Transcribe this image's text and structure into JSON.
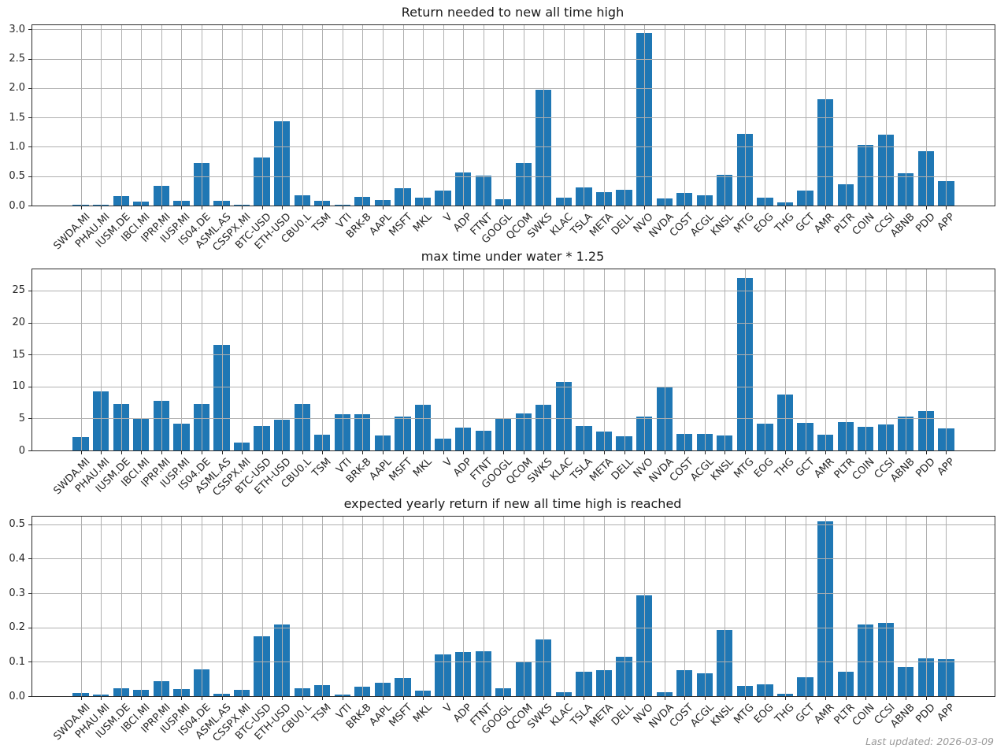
{
  "figure": {
    "background_color": "#ffffff",
    "bar_color": "#1f77b4",
    "grid_color": "#b0b0b0"
  },
  "footer": {
    "last_updated": "Last updated: 2026-03-09"
  },
  "chart_data": [
    {
      "type": "bar",
      "title": "Return needed to new all time high",
      "xlabel": "",
      "ylabel": "",
      "grid": true,
      "legend": false,
      "ylim": [
        0,
        3.07
      ],
      "ytick_values": [
        0,
        0.5,
        1.0,
        1.5,
        2.0,
        2.5,
        3.0
      ],
      "ytick_labels": [
        "0.0",
        "0.5",
        "1.0",
        "1.5",
        "2.0",
        "2.5",
        "3.0"
      ],
      "categories": [
        "SWDA.MI",
        "PHAU.MI",
        "IUSM.DE",
        "IBCI.MI",
        "IPRP.MI",
        "IUSP.MI",
        "IS04.DE",
        "ASML.AS",
        "CSSPX.MI",
        "BTC-USD",
        "ETH-USD",
        "CBU0.L",
        "TSM",
        "VTI",
        "BRK-B",
        "AAPL",
        "MSFT",
        "MKL",
        "V",
        "ADP",
        "FTNT",
        "GOOGL",
        "QCOM",
        "SWKS",
        "KLAC",
        "TSLA",
        "META",
        "DELL",
        "NVO",
        "NVDA",
        "COST",
        "ACGL",
        "KNSL",
        "MTG",
        "EOG",
        "THG",
        "GCT",
        "AMR",
        "PLTR",
        "COIN",
        "CCSI",
        "ABNB",
        "PDD",
        "APP"
      ],
      "values": [
        0.01,
        0.02,
        0.16,
        0.07,
        0.34,
        0.08,
        0.72,
        0.08,
        0.02,
        0.82,
        1.44,
        0.17,
        0.08,
        0.01,
        0.15,
        0.1,
        0.3,
        0.13,
        0.25,
        0.57,
        0.51,
        0.11,
        0.73,
        1.97,
        0.14,
        0.31,
        0.23,
        0.27,
        2.94,
        0.12,
        0.21,
        0.18,
        0.53,
        1.22,
        0.13,
        0.05,
        0.26,
        1.81,
        0.36,
        1.03,
        1.21,
        0.55,
        0.92,
        0.42
      ]
    },
    {
      "type": "bar",
      "title": "max time under water * 1.25",
      "xlabel": "",
      "ylabel": "",
      "grid": true,
      "legend": false,
      "ylim": [
        0,
        28.3
      ],
      "ytick_values": [
        0,
        5,
        10,
        15,
        20,
        25
      ],
      "ytick_labels": [
        "0",
        "5",
        "10",
        "15",
        "20",
        "25"
      ],
      "categories": [
        "SWDA.MI",
        "PHAU.MI",
        "IUSM.DE",
        "IBCI.MI",
        "IPRP.MI",
        "IUSP.MI",
        "IS04.DE",
        "ASML.AS",
        "CSSPX.MI",
        "BTC-USD",
        "ETH-USD",
        "CBU0.L",
        "TSM",
        "VTI",
        "BRK-B",
        "AAPL",
        "MSFT",
        "MKL",
        "V",
        "ADP",
        "FTNT",
        "GOOGL",
        "QCOM",
        "SWKS",
        "KLAC",
        "TSLA",
        "META",
        "DELL",
        "NVO",
        "NVDA",
        "COST",
        "ACGL",
        "KNSL",
        "MTG",
        "EOG",
        "THG",
        "GCT",
        "AMR",
        "PLTR",
        "COIN",
        "CCSI",
        "ABNB",
        "PDD",
        "APP"
      ],
      "values": [
        2.1,
        9.2,
        7.3,
        5.0,
        7.7,
        4.2,
        7.3,
        16.5,
        1.2,
        3.8,
        4.8,
        7.3,
        2.5,
        5.7,
        5.7,
        2.4,
        5.3,
        7.2,
        1.9,
        3.6,
        3.1,
        5.0,
        5.8,
        7.2,
        10.7,
        3.8,
        2.9,
        2.2,
        5.3,
        10.0,
        2.6,
        2.6,
        2.3,
        27.0,
        4.2,
        8.7,
        4.3,
        2.5,
        4.4,
        3.7,
        4.1,
        5.3,
        6.2,
        3.5
      ]
    },
    {
      "type": "bar",
      "title": "expected yearly return if new all time high is reached",
      "xlabel": "",
      "ylabel": "",
      "grid": true,
      "legend": false,
      "ylim": [
        0,
        0.522
      ],
      "ytick_values": [
        0,
        0.1,
        0.2,
        0.3,
        0.4,
        0.5
      ],
      "ytick_labels": [
        "0.0",
        "0.1",
        "0.2",
        "0.3",
        "0.4",
        "0.5"
      ],
      "categories": [
        "SWDA.MI",
        "PHAU.MI",
        "IUSM.DE",
        "IBCI.MI",
        "IPRP.MI",
        "IUSP.MI",
        "IS04.DE",
        "ASML.AS",
        "CSSPX.MI",
        "BTC-USD",
        "ETH-USD",
        "CBU0.L",
        "TSM",
        "VTI",
        "BRK-B",
        "AAPL",
        "MSFT",
        "MKL",
        "V",
        "ADP",
        "FTNT",
        "GOOGL",
        "QCOM",
        "SWKS",
        "KLAC",
        "TSLA",
        "META",
        "DELL",
        "NVO",
        "NVDA",
        "COST",
        "ACGL",
        "KNSL",
        "MTG",
        "EOG",
        "THG",
        "GCT",
        "AMR",
        "PLTR",
        "COIN",
        "CCSI",
        "ABNB",
        "PDD",
        "APP"
      ],
      "values": [
        0.01,
        0.004,
        0.022,
        0.018,
        0.043,
        0.021,
        0.079,
        0.006,
        0.018,
        0.174,
        0.208,
        0.022,
        0.033,
        0.004,
        0.027,
        0.04,
        0.053,
        0.017,
        0.121,
        0.128,
        0.131,
        0.022,
        0.098,
        0.164,
        0.012,
        0.071,
        0.076,
        0.115,
        0.293,
        0.011,
        0.076,
        0.067,
        0.192,
        0.03,
        0.034,
        0.007,
        0.055,
        0.508,
        0.072,
        0.208,
        0.213,
        0.085,
        0.111,
        0.107
      ]
    }
  ]
}
